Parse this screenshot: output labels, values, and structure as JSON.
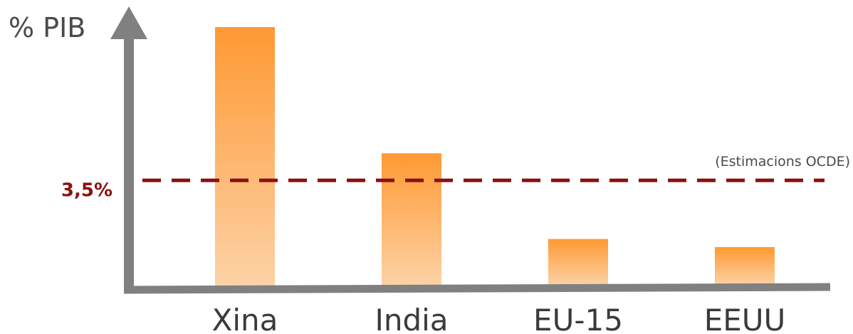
{
  "chart_data": {
    "type": "bar",
    "ylabel": "% PIB",
    "categories": [
      "Xina",
      "India",
      "EU-15",
      "EEUU"
    ],
    "values": [
      8.6,
      4.4,
      1.55,
      1.28
    ],
    "ylim": [
      0,
      9.5
    ],
    "grid": false,
    "reference_line": {
      "value": 3.5,
      "label": "3,5%",
      "color": "#8b1010",
      "style": "dashed"
    },
    "annotation": "(Estimacions OCDE)",
    "colors": {
      "bar_top": "#ff9933",
      "bar_bottom": "#fcd2a6",
      "axis": "#808080"
    }
  }
}
